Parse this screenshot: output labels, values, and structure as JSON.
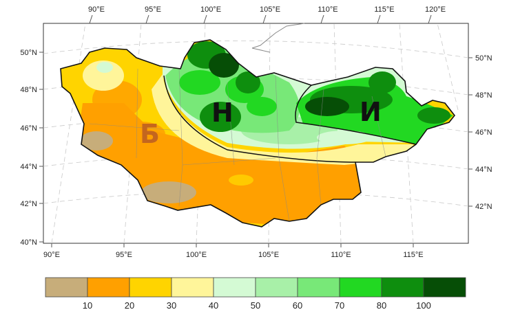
{
  "map": {
    "top_lon_ticks": [
      "90°E",
      "95°E",
      "100°E",
      "105°E",
      "110°E",
      "115°E",
      "120°E"
    ],
    "bottom_lon_ticks": [
      "90°E",
      "95°E",
      "100°E",
      "105°E",
      "110°E",
      "115°E"
    ],
    "left_lat_ticks": [
      "50°N",
      "48°N",
      "46°N",
      "44°N",
      "42°N",
      "40°N"
    ],
    "right_lat_ticks": [
      "50°N",
      "48°N",
      "46°N",
      "44°N",
      "42°N"
    ],
    "regions": [
      {
        "letter": "Б",
        "color": "#c4661e"
      },
      {
        "letter": "Н",
        "color": "#111111"
      },
      {
        "letter": "И",
        "color": "#111111"
      }
    ]
  },
  "legend": {
    "colors": [
      "#c7ad7a",
      "#ffa000",
      "#ffd400",
      "#fff59a",
      "#d4fad4",
      "#a8f0a8",
      "#78e878",
      "#22d822",
      "#0e8e0e",
      "#064e06"
    ],
    "labels": [
      "10",
      "20",
      "30",
      "40",
      "50",
      "60",
      "70",
      "80",
      "100"
    ]
  }
}
